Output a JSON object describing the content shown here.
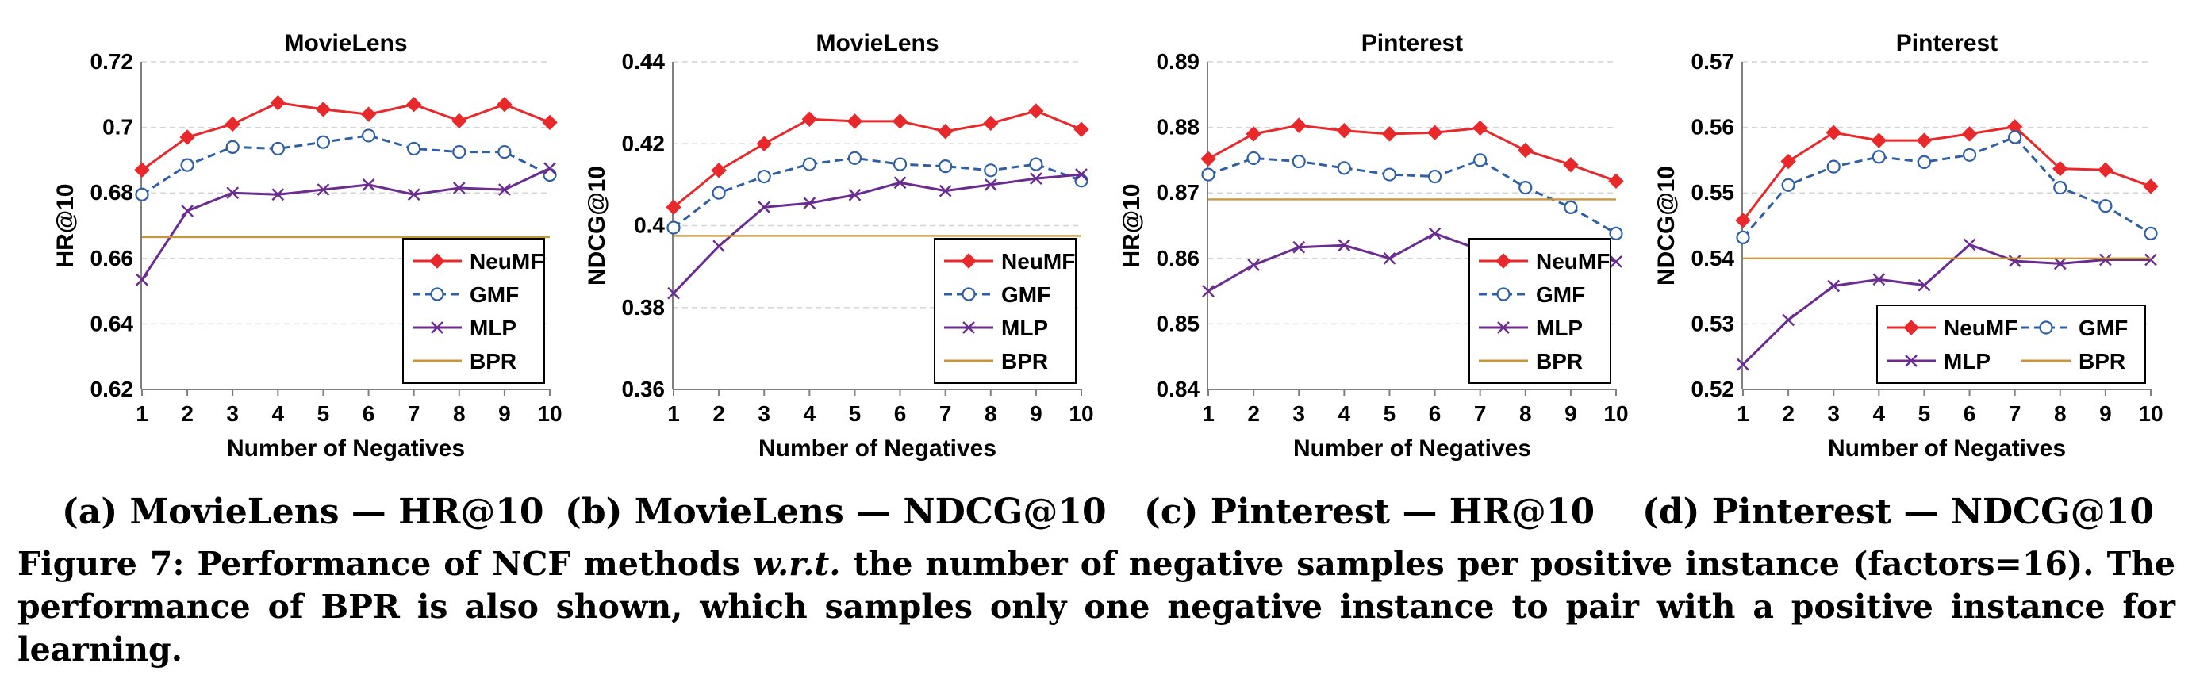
{
  "chart_data": [
    {
      "type": "line",
      "title": "MovieLens",
      "xlabel": "Number of Negatives",
      "ylabel": "HR@10",
      "x": [
        1,
        2,
        3,
        4,
        5,
        6,
        7,
        8,
        9,
        10
      ],
      "ylim": [
        0.62,
        0.72
      ],
      "yticks": [
        0.62,
        0.64,
        0.66,
        0.68,
        0.7,
        0.72
      ],
      "ytick_labels": [
        "0.62",
        "0.64",
        "0.66",
        "0.68",
        "0.7",
        "0.72"
      ],
      "legend_position": "bottom-right",
      "legend_cols": 1,
      "grid": true,
      "series": [
        {
          "name": "NeuMF",
          "color": "#e8282b",
          "marker": "diamond",
          "values": [
            0.687,
            0.697,
            0.701,
            0.7075,
            0.7055,
            0.704,
            0.707,
            0.702,
            0.707,
            0.7015
          ]
        },
        {
          "name": "GMF",
          "color": "#2e5fa5",
          "marker": "circle",
          "dashed": true,
          "values": [
            0.6795,
            0.6885,
            0.694,
            0.6935,
            0.6955,
            0.6975,
            0.6935,
            0.6925,
            0.6925,
            0.6855
          ]
        },
        {
          "name": "MLP",
          "color": "#6a2c91",
          "marker": "x",
          "values": [
            0.6535,
            0.6745,
            0.68,
            0.6795,
            0.681,
            0.6825,
            0.6795,
            0.6815,
            0.681,
            0.6875
          ]
        },
        {
          "name": "BPR",
          "color": "#c8963e",
          "marker": "none",
          "values": [
            0.6665,
            0.6665,
            0.6665,
            0.6665,
            0.6665,
            0.6665,
            0.6665,
            0.6665,
            0.6665,
            0.6665
          ]
        }
      ]
    },
    {
      "type": "line",
      "title": "MovieLens",
      "xlabel": "Number of Negatives",
      "ylabel": "NDCG@10",
      "x": [
        1,
        2,
        3,
        4,
        5,
        6,
        7,
        8,
        9,
        10
      ],
      "ylim": [
        0.36,
        0.44
      ],
      "yticks": [
        0.36,
        0.38,
        0.4,
        0.42,
        0.44
      ],
      "ytick_labels": [
        "0.36",
        "0.38",
        "0.4",
        "0.42",
        "0.44"
      ],
      "legend_position": "bottom-right",
      "legend_cols": 1,
      "grid": true,
      "series": [
        {
          "name": "NeuMF",
          "color": "#e8282b",
          "marker": "diamond",
          "values": [
            0.4045,
            0.4135,
            0.42,
            0.426,
            0.4255,
            0.4255,
            0.423,
            0.425,
            0.428,
            0.4235
          ]
        },
        {
          "name": "GMF",
          "color": "#2e5fa5",
          "marker": "circle",
          "dashed": true,
          "values": [
            0.3995,
            0.408,
            0.412,
            0.415,
            0.4165,
            0.415,
            0.4145,
            0.4135,
            0.415,
            0.411
          ]
        },
        {
          "name": "MLP",
          "color": "#6a2c91",
          "marker": "x",
          "values": [
            0.3835,
            0.395,
            0.4045,
            0.4055,
            0.4075,
            0.4105,
            0.4085,
            0.41,
            0.4115,
            0.4125
          ]
        },
        {
          "name": "BPR",
          "color": "#c8963e",
          "marker": "none",
          "values": [
            0.3975,
            0.3975,
            0.3975,
            0.3975,
            0.3975,
            0.3975,
            0.3975,
            0.3975,
            0.3975,
            0.3975
          ]
        }
      ]
    },
    {
      "type": "line",
      "title": "Pinterest",
      "xlabel": "Number of Negatives",
      "ylabel": "HR@10",
      "x": [
        1,
        2,
        3,
        4,
        5,
        6,
        7,
        8,
        9,
        10
      ],
      "ylim": [
        0.84,
        0.89
      ],
      "yticks": [
        0.84,
        0.85,
        0.86,
        0.87,
        0.88,
        0.89
      ],
      "ytick_labels": [
        "0.84",
        "0.85",
        "0.86",
        "0.87",
        "0.88",
        "0.89"
      ],
      "legend_position": "bottom-right",
      "legend_cols": 1,
      "grid": true,
      "series": [
        {
          "name": "NeuMF",
          "color": "#e8282b",
          "marker": "diamond",
          "values": [
            0.8752,
            0.879,
            0.8803,
            0.8795,
            0.879,
            0.8792,
            0.8799,
            0.8765,
            0.8743,
            0.8718
          ]
        },
        {
          "name": "GMF",
          "color": "#2e5fa5",
          "marker": "circle",
          "dashed": true,
          "values": [
            0.8728,
            0.8753,
            0.8748,
            0.8738,
            0.8728,
            0.8725,
            0.875,
            0.8708,
            0.8678,
            0.8638
          ]
        },
        {
          "name": "MLP",
          "color": "#6a2c91",
          "marker": "x",
          "values": [
            0.855,
            0.859,
            0.8617,
            0.862,
            0.86,
            0.8638,
            0.8613,
            0.862,
            0.862,
            0.8595
          ]
        },
        {
          "name": "BPR",
          "color": "#c8963e",
          "marker": "none",
          "values": [
            0.869,
            0.869,
            0.869,
            0.869,
            0.869,
            0.869,
            0.869,
            0.869,
            0.869,
            0.869
          ]
        }
      ]
    },
    {
      "type": "line",
      "title": "Pinterest",
      "xlabel": "Number of Negatives",
      "ylabel": "NDCG@10",
      "x": [
        1,
        2,
        3,
        4,
        5,
        6,
        7,
        8,
        9,
        10
      ],
      "ylim": [
        0.52,
        0.57
      ],
      "yticks": [
        0.52,
        0.53,
        0.54,
        0.55,
        0.56,
        0.57
      ],
      "ytick_labels": [
        "0.52",
        "0.53",
        "0.54",
        "0.55",
        "0.56",
        "0.57"
      ],
      "legend_position": "bottom-right",
      "legend_cols": 2,
      "grid": true,
      "series": [
        {
          "name": "NeuMF",
          "color": "#e8282b",
          "marker": "diamond",
          "values": [
            0.5458,
            0.5548,
            0.5592,
            0.558,
            0.558,
            0.559,
            0.5601,
            0.5537,
            0.5535,
            0.551
          ]
        },
        {
          "name": "GMF",
          "color": "#2e5fa5",
          "marker": "circle",
          "dashed": true,
          "values": [
            0.5432,
            0.5512,
            0.554,
            0.5555,
            0.5547,
            0.5558,
            0.5585,
            0.5508,
            0.548,
            0.5438
          ]
        },
        {
          "name": "MLP",
          "color": "#6a2c91",
          "marker": "x",
          "values": [
            0.5238,
            0.5306,
            0.5358,
            0.5368,
            0.5359,
            0.5421,
            0.5396,
            0.5392,
            0.5398,
            0.5398
          ]
        },
        {
          "name": "BPR",
          "color": "#c8963e",
          "marker": "none",
          "values": [
            0.54,
            0.54,
            0.54,
            0.54,
            0.54,
            0.54,
            0.54,
            0.54,
            0.54,
            0.54
          ]
        }
      ]
    }
  ],
  "subcaptions": [
    "(a) MovieLens — HR@10",
    "(b) MovieLens — NDCG@10",
    "(c) Pinterest — HR@10",
    "(d) Pinterest — NDCG@10"
  ],
  "caption": {
    "part1": "Figure 7: Performance of NCF methods ",
    "emph": "w.r.t.",
    "part2": " the number of negative samples per positive instance (factors=16). The performance of BPR is also shown, which samples only one negative instance to pair with a positive instance for learning."
  }
}
